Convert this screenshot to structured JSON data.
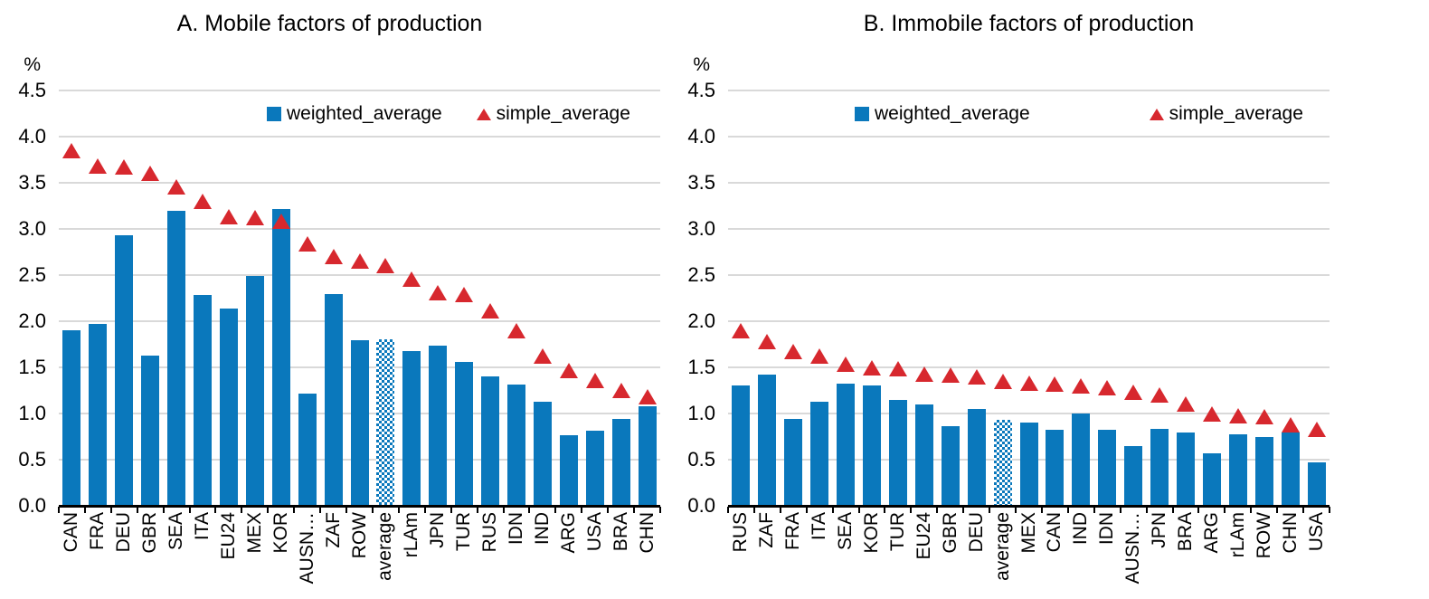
{
  "colors": {
    "bar_blue": "#0a78bc",
    "marker_red": "#d7282e",
    "gridline_gray": "#d9d9d9",
    "axis_black": "#000000"
  },
  "yticks": [
    "4.5",
    "4.0",
    "3.5",
    "3.0",
    "2.5",
    "2.0",
    "1.5",
    "1.0",
    "0.5",
    "0.0"
  ],
  "chart_data": [
    {
      "type": "bar",
      "title": "A. Mobile factors of production",
      "ylabel": "%",
      "ylim": [
        0,
        4.5
      ],
      "ytick_step": 0.5,
      "grid": true,
      "legend_position": "top-inside",
      "patterned_category": "average",
      "categories": [
        "CAN",
        "FRA",
        "DEU",
        "GBR",
        "SEA",
        "ITA",
        "EU24",
        "MEX",
        "KOR",
        "AUSN…",
        "ZAF",
        "ROW",
        "average",
        "rLAm",
        "JPN",
        "TUR",
        "RUS",
        "IDN",
        "IND",
        "ARG",
        "USA",
        "BRA",
        "CHN"
      ],
      "series": [
        {
          "name": "weighted_average",
          "type": "bar",
          "marker": "square",
          "values": [
            1.9,
            1.97,
            2.93,
            1.63,
            3.2,
            2.28,
            2.14,
            2.49,
            3.22,
            1.22,
            2.29,
            1.79,
            1.8,
            1.68,
            1.74,
            1.56,
            1.4,
            1.31,
            1.13,
            0.76,
            0.81,
            0.94,
            1.08
          ]
        },
        {
          "name": "simple_average",
          "type": "scatter",
          "marker": "triangle",
          "values": [
            3.85,
            3.68,
            3.67,
            3.6,
            3.46,
            3.3,
            3.13,
            3.12,
            3.08,
            2.84,
            2.7,
            2.65,
            2.6,
            2.46,
            2.31,
            2.29,
            2.11,
            1.9,
            1.62,
            1.47,
            1.36,
            1.25,
            1.18
          ]
        }
      ]
    },
    {
      "type": "bar",
      "title": "B. Immobile factors of production",
      "ylabel": "%",
      "ylim": [
        0,
        4.5
      ],
      "ytick_step": 0.5,
      "grid": true,
      "legend_position": "top-inside",
      "patterned_category": "average",
      "categories": [
        "RUS",
        "ZAF",
        "FRA",
        "ITA",
        "SEA",
        "KOR",
        "TUR",
        "EU24",
        "GBR",
        "DEU",
        "average",
        "MEX",
        "CAN",
        "IND",
        "IDN",
        "AUSN…",
        "JPN",
        "BRA",
        "ARG",
        "rLAm",
        "ROW",
        "CHN",
        "USA"
      ],
      "series": [
        {
          "name": "weighted_average",
          "type": "bar",
          "marker": "square",
          "values": [
            1.3,
            1.42,
            0.94,
            1.13,
            1.32,
            1.3,
            1.15,
            1.1,
            0.86,
            1.05,
            0.93,
            0.9,
            0.82,
            1.0,
            0.82,
            0.65,
            0.83,
            0.79,
            0.57,
            0.77,
            0.75,
            0.79,
            0.47
          ]
        },
        {
          "name": "simple_average",
          "type": "scatter",
          "marker": "triangle",
          "values": [
            1.9,
            1.78,
            1.67,
            1.62,
            1.53,
            1.5,
            1.49,
            1.43,
            1.42,
            1.4,
            1.35,
            1.33,
            1.32,
            1.3,
            1.28,
            1.23,
            1.2,
            1.1,
            1.0,
            0.98,
            0.97,
            0.88,
            0.83
          ]
        }
      ]
    }
  ]
}
